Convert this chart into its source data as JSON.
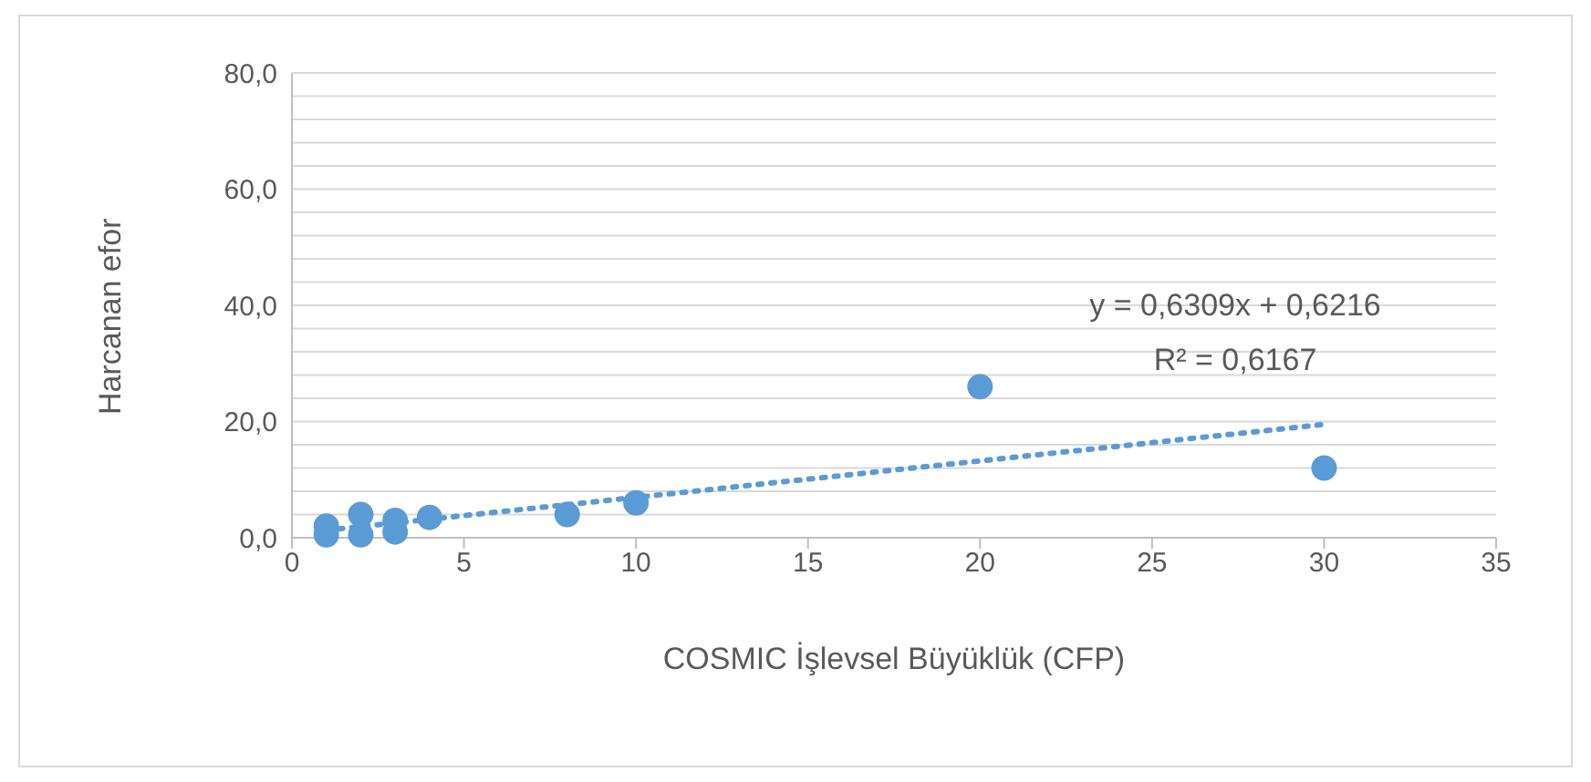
{
  "chart_data": {
    "type": "scatter",
    "xlabel": "COSMIC İşlevsel Büyüklük (CFP)",
    "ylabel": "Harcanan efor",
    "xlim": [
      0,
      35
    ],
    "xticks": [
      0,
      5,
      10,
      15,
      20,
      25,
      30,
      35
    ],
    "ylim": [
      0,
      80
    ],
    "yticks": [
      {
        "value": 0,
        "label": "0,0"
      },
      {
        "value": 4,
        "label": null
      },
      {
        "value": 8,
        "label": null
      },
      {
        "value": 12,
        "label": null
      },
      {
        "value": 16,
        "label": null
      },
      {
        "value": 20,
        "label": "20,0"
      },
      {
        "value": 24,
        "label": null
      },
      {
        "value": 28,
        "label": null
      },
      {
        "value": 32,
        "label": null
      },
      {
        "value": 36,
        "label": null
      },
      {
        "value": 40,
        "label": "40,0"
      },
      {
        "value": 44,
        "label": null
      },
      {
        "value": 48,
        "label": null
      },
      {
        "value": 52,
        "label": null
      },
      {
        "value": 56,
        "label": null
      },
      {
        "value": 60,
        "label": "60,0"
      },
      {
        "value": 64,
        "label": null
      },
      {
        "value": 68,
        "label": null
      },
      {
        "value": 72,
        "label": null
      },
      {
        "value": 76,
        "label": null
      },
      {
        "value": 80,
        "label": "80,0"
      }
    ],
    "grid": "y",
    "marker": "circle",
    "series": [
      {
        "color": "#5b9bd5",
        "x": [
          1,
          1,
          2,
          2,
          3,
          3,
          4,
          8,
          10,
          20,
          30
        ],
        "values": [
          2,
          0.5,
          4,
          0.5,
          3,
          1,
          3.5,
          4,
          6,
          26,
          12
        ]
      },
      {
        "type": "line",
        "color": "#5b9bd5",
        "line_style": "dotted",
        "marker": "none",
        "x": [
          1,
          30
        ],
        "values": [
          1.3,
          19.5
        ]
      }
    ],
    "annotations": [
      "y = 0,6309x + 0,6216",
      "R² = 0,6167"
    ]
  }
}
